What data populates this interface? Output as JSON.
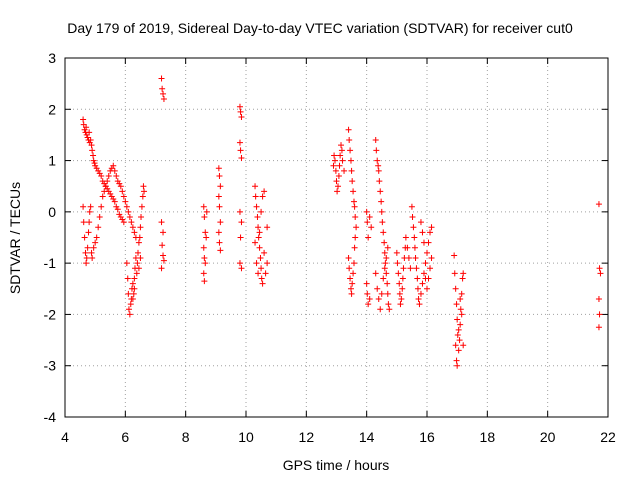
{
  "chart_data": {
    "type": "scatter",
    "title": "Day 179 of 2019, Sidereal Day-to-day VTEC variation (SDTVAR) for receiver cut0",
    "xlabel": "GPS time / hours",
    "ylabel": "SDTVAR / TECUs",
    "xlim": [
      4,
      22
    ],
    "ylim": [
      -4,
      3
    ],
    "xticks": [
      "4",
      "6",
      "8",
      "10",
      "12",
      "14",
      "16",
      "18",
      "20",
      "22"
    ],
    "yticks": [
      "3",
      "2",
      "1",
      "0",
      "-1",
      "-2",
      "-3",
      "-4"
    ],
    "grid": true,
    "marker": "+",
    "color": "#ff0000",
    "points": [
      [
        4.6,
        1.8
      ],
      [
        4.62,
        1.7
      ],
      [
        4.65,
        1.6
      ],
      [
        4.68,
        1.55
      ],
      [
        4.7,
        1.65
      ],
      [
        4.72,
        1.5
      ],
      [
        4.75,
        1.45
      ],
      [
        4.78,
        1.4
      ],
      [
        4.8,
        1.55
      ],
      [
        4.82,
        1.35
      ],
      [
        4.85,
        1.4
      ],
      [
        4.88,
        1.3
      ],
      [
        4.9,
        1.2
      ],
      [
        4.93,
        1.1
      ],
      [
        4.95,
        1.0
      ],
      [
        4.98,
        0.95
      ],
      [
        5.0,
        0.9
      ],
      [
        5.05,
        0.85
      ],
      [
        5.1,
        0.8
      ],
      [
        5.15,
        0.75
      ],
      [
        5.2,
        0.7
      ],
      [
        5.25,
        0.6
      ],
      [
        5.3,
        0.55
      ],
      [
        5.35,
        0.5
      ],
      [
        5.4,
        0.45
      ],
      [
        5.45,
        0.4
      ],
      [
        5.5,
        0.35
      ],
      [
        5.55,
        0.3
      ],
      [
        5.6,
        0.25
      ],
      [
        5.65,
        0.2
      ],
      [
        5.7,
        0.1
      ],
      [
        5.75,
        0.05
      ],
      [
        5.8,
        -0.05
      ],
      [
        5.85,
        -0.1
      ],
      [
        5.9,
        -0.15
      ],
      [
        5.95,
        -0.2
      ],
      [
        4.6,
        0.1
      ],
      [
        4.62,
        -0.2
      ],
      [
        4.65,
        -0.5
      ],
      [
        4.68,
        -0.8
      ],
      [
        4.7,
        -1.0
      ],
      [
        4.72,
        -0.9
      ],
      [
        4.75,
        -0.7
      ],
      [
        4.78,
        -0.4
      ],
      [
        4.8,
        -0.2
      ],
      [
        4.82,
        0.0
      ],
      [
        4.85,
        0.1
      ],
      [
        4.88,
        -0.8
      ],
      [
        4.9,
        -0.9
      ],
      [
        4.95,
        -0.7
      ],
      [
        5.0,
        -0.6
      ],
      [
        5.05,
        -0.5
      ],
      [
        5.1,
        -0.3
      ],
      [
        5.15,
        -0.1
      ],
      [
        5.2,
        0.1
      ],
      [
        5.25,
        0.3
      ],
      [
        5.3,
        0.4
      ],
      [
        5.35,
        0.5
      ],
      [
        5.4,
        0.6
      ],
      [
        5.45,
        0.7
      ],
      [
        5.5,
        0.8
      ],
      [
        5.55,
        0.85
      ],
      [
        5.6,
        0.9
      ],
      [
        5.65,
        0.8
      ],
      [
        5.7,
        0.7
      ],
      [
        5.75,
        0.6
      ],
      [
        5.8,
        0.55
      ],
      [
        5.85,
        0.5
      ],
      [
        5.9,
        0.4
      ],
      [
        5.95,
        0.3
      ],
      [
        6.0,
        0.2
      ],
      [
        6.05,
        0.1
      ],
      [
        6.1,
        0.0
      ],
      [
        6.15,
        -0.1
      ],
      [
        6.2,
        -0.2
      ],
      [
        6.25,
        -0.3
      ],
      [
        6.3,
        -0.4
      ],
      [
        6.35,
        -0.5
      ],
      [
        6.05,
        -1.0
      ],
      [
        6.08,
        -1.3
      ],
      [
        6.1,
        -1.6
      ],
      [
        6.12,
        -1.9
      ],
      [
        6.15,
        -2.0
      ],
      [
        6.18,
        -1.8
      ],
      [
        6.2,
        -1.7
      ],
      [
        6.22,
        -1.5
      ],
      [
        6.25,
        -1.4
      ],
      [
        6.28,
        -1.6
      ],
      [
        6.3,
        -1.3
      ],
      [
        6.32,
        -1.1
      ],
      [
        6.35,
        -0.9
      ],
      [
        6.38,
        -1.2
      ],
      [
        6.4,
        -1.0
      ],
      [
        6.42,
        -0.8
      ],
      [
        6.45,
        -0.6
      ],
      [
        6.48,
        -0.5
      ],
      [
        6.5,
        -0.3
      ],
      [
        6.52,
        -0.1
      ],
      [
        6.55,
        0.1
      ],
      [
        6.58,
        0.3
      ],
      [
        6.6,
        0.5
      ],
      [
        6.62,
        0.4
      ],
      [
        6.5,
        -0.9
      ],
      [
        6.45,
        -1.1
      ],
      [
        6.3,
        -1.5
      ],
      [
        6.25,
        -1.7
      ],
      [
        7.2,
        2.6
      ],
      [
        7.22,
        2.4
      ],
      [
        7.25,
        2.3
      ],
      [
        7.28,
        2.2
      ],
      [
        7.2,
        -0.2
      ],
      [
        7.25,
        -0.4
      ],
      [
        7.22,
        -0.65
      ],
      [
        7.25,
        -0.85
      ],
      [
        7.28,
        -0.95
      ],
      [
        7.2,
        -1.1
      ],
      [
        8.6,
        0.1
      ],
      [
        8.62,
        -0.1
      ],
      [
        8.65,
        -0.4
      ],
      [
        8.6,
        -0.7
      ],
      [
        8.62,
        -0.9
      ],
      [
        8.65,
        -1.0
      ],
      [
        8.6,
        -1.2
      ],
      [
        8.62,
        -1.35
      ],
      [
        8.7,
        0.0
      ],
      [
        8.68,
        -0.5
      ],
      [
        9.1,
        0.85
      ],
      [
        9.12,
        0.7
      ],
      [
        9.15,
        0.5
      ],
      [
        9.1,
        0.3
      ],
      [
        9.12,
        0.1
      ],
      [
        9.15,
        -0.2
      ],
      [
        9.1,
        -0.4
      ],
      [
        9.12,
        -0.6
      ],
      [
        9.15,
        -0.75
      ],
      [
        9.8,
        2.05
      ],
      [
        9.82,
        1.95
      ],
      [
        9.85,
        1.85
      ],
      [
        9.8,
        1.35
      ],
      [
        9.82,
        1.2
      ],
      [
        9.85,
        1.05
      ],
      [
        9.8,
        0.0
      ],
      [
        9.85,
        -0.2
      ],
      [
        9.82,
        -0.5
      ],
      [
        9.8,
        -1.0
      ],
      [
        9.85,
        -1.1
      ],
      [
        10.3,
        0.5
      ],
      [
        10.32,
        0.3
      ],
      [
        10.35,
        0.1
      ],
      [
        10.38,
        -0.1
      ],
      [
        10.4,
        -0.3
      ],
      [
        10.42,
        -0.5
      ],
      [
        10.45,
        -0.7
      ],
      [
        10.48,
        -0.9
      ],
      [
        10.5,
        -1.1
      ],
      [
        10.52,
        -1.3
      ],
      [
        10.55,
        -1.4
      ],
      [
        10.3,
        -0.6
      ],
      [
        10.35,
        -1.0
      ],
      [
        10.4,
        -1.2
      ],
      [
        10.45,
        -0.4
      ],
      [
        10.5,
        0.0
      ],
      [
        10.55,
        0.3
      ],
      [
        10.6,
        0.4
      ],
      [
        10.6,
        -0.8
      ],
      [
        10.65,
        -1.2
      ],
      [
        10.7,
        -0.3
      ],
      [
        10.7,
        -1.0
      ],
      [
        12.9,
        0.9
      ],
      [
        12.92,
        1.1
      ],
      [
        12.95,
        1.0
      ],
      [
        12.98,
        0.8
      ],
      [
        13.0,
        0.6
      ],
      [
        13.02,
        0.4
      ],
      [
        13.05,
        0.5
      ],
      [
        13.08,
        0.7
      ],
      [
        13.1,
        0.9
      ],
      [
        13.12,
        1.1
      ],
      [
        13.15,
        1.3
      ],
      [
        13.18,
        1.2
      ],
      [
        13.2,
        1.0
      ],
      [
        13.25,
        0.8
      ],
      [
        13.4,
        1.6
      ],
      [
        13.42,
        1.4
      ],
      [
        13.45,
        1.2
      ],
      [
        13.48,
        1.0
      ],
      [
        13.5,
        0.8
      ],
      [
        13.52,
        0.6
      ],
      [
        13.55,
        0.4
      ],
      [
        13.58,
        0.2
      ],
      [
        13.6,
        0.1
      ],
      [
        13.62,
        -0.1
      ],
      [
        13.65,
        -0.3
      ],
      [
        13.4,
        -0.9
      ],
      [
        13.42,
        -1.1
      ],
      [
        13.45,
        -1.3
      ],
      [
        13.48,
        -1.5
      ],
      [
        13.5,
        -1.6
      ],
      [
        13.52,
        -1.4
      ],
      [
        13.55,
        -1.2
      ],
      [
        13.58,
        -1.0
      ],
      [
        13.6,
        -0.7
      ],
      [
        13.62,
        -0.5
      ],
      [
        14.0,
        0.0
      ],
      [
        14.02,
        -0.2
      ],
      [
        14.05,
        -0.5
      ],
      [
        14.1,
        -0.1
      ],
      [
        14.15,
        -0.3
      ],
      [
        14.0,
        -1.4
      ],
      [
        14.02,
        -1.6
      ],
      [
        14.05,
        -1.8
      ],
      [
        14.1,
        -1.7
      ],
      [
        14.3,
        1.4
      ],
      [
        14.32,
        1.2
      ],
      [
        14.35,
        1.0
      ],
      [
        14.38,
        0.9
      ],
      [
        14.4,
        0.8
      ],
      [
        14.42,
        0.6
      ],
      [
        14.45,
        0.4
      ],
      [
        14.48,
        0.2
      ],
      [
        14.5,
        0.0
      ],
      [
        14.52,
        -0.2
      ],
      [
        14.55,
        -0.4
      ],
      [
        14.58,
        -0.6
      ],
      [
        14.6,
        -0.8
      ],
      [
        14.62,
        -1.0
      ],
      [
        14.65,
        -1.2
      ],
      [
        14.68,
        -1.4
      ],
      [
        14.7,
        -1.6
      ],
      [
        14.72,
        -1.8
      ],
      [
        14.75,
        -1.9
      ],
      [
        14.3,
        -1.2
      ],
      [
        14.35,
        -1.5
      ],
      [
        14.4,
        -1.7
      ],
      [
        14.45,
        -1.9
      ],
      [
        14.5,
        -1.6
      ],
      [
        14.55,
        -1.3
      ],
      [
        14.6,
        -1.1
      ],
      [
        14.65,
        -0.9
      ],
      [
        14.7,
        -0.7
      ],
      [
        15.0,
        -0.8
      ],
      [
        15.02,
        -1.0
      ],
      [
        15.05,
        -1.2
      ],
      [
        15.08,
        -1.4
      ],
      [
        15.1,
        -1.6
      ],
      [
        15.12,
        -1.8
      ],
      [
        15.15,
        -1.7
      ],
      [
        15.18,
        -1.5
      ],
      [
        15.2,
        -1.3
      ],
      [
        15.22,
        -1.1
      ],
      [
        15.25,
        -0.9
      ],
      [
        15.28,
        -0.7
      ],
      [
        15.3,
        -0.5
      ],
      [
        15.35,
        -0.7
      ],
      [
        15.4,
        -0.9
      ],
      [
        15.45,
        -1.1
      ],
      [
        15.5,
        0.1
      ],
      [
        15.52,
        -0.1
      ],
      [
        15.55,
        -0.3
      ],
      [
        15.58,
        -0.5
      ],
      [
        15.6,
        -0.7
      ],
      [
        15.62,
        -0.9
      ],
      [
        15.65,
        -1.1
      ],
      [
        15.68,
        -1.3
      ],
      [
        15.7,
        -1.5
      ],
      [
        15.72,
        -1.7
      ],
      [
        15.75,
        -1.8
      ],
      [
        15.8,
        -1.6
      ],
      [
        15.85,
        -1.4
      ],
      [
        15.9,
        -1.2
      ],
      [
        15.95,
        -1.0
      ],
      [
        16.0,
        -0.8
      ],
      [
        16.05,
        -0.6
      ],
      [
        16.1,
        -0.4
      ],
      [
        16.15,
        -0.3
      ],
      [
        15.8,
        -0.2
      ],
      [
        15.85,
        -0.4
      ],
      [
        15.9,
        -0.6
      ],
      [
        15.95,
        -1.3
      ],
      [
        16.0,
        -1.5
      ],
      [
        16.05,
        -1.3
      ],
      [
        16.1,
        -1.1
      ],
      [
        16.15,
        -0.9
      ],
      [
        16.9,
        -0.85
      ],
      [
        16.92,
        -1.2
      ],
      [
        16.95,
        -1.5
      ],
      [
        16.98,
        -1.8
      ],
      [
        17.0,
        -2.1
      ],
      [
        17.02,
        -2.4
      ],
      [
        17.05,
        -2.7
      ],
      [
        17.08,
        -2.5
      ],
      [
        17.1,
        -2.2
      ],
      [
        17.12,
        -1.9
      ],
      [
        17.15,
        -1.6
      ],
      [
        17.18,
        -1.3
      ],
      [
        17.2,
        -1.2
      ],
      [
        16.95,
        -2.6
      ],
      [
        16.98,
        -2.9
      ],
      [
        17.0,
        -3.0
      ],
      [
        17.05,
        -2.3
      ],
      [
        17.1,
        -1.7
      ],
      [
        17.15,
        -2.0
      ],
      [
        17.2,
        -2.6
      ],
      [
        21.7,
        0.15
      ],
      [
        21.72,
        -1.1
      ],
      [
        21.75,
        -1.2
      ],
      [
        21.7,
        -1.7
      ],
      [
        21.72,
        -2.0
      ],
      [
        21.7,
        -2.25
      ]
    ]
  }
}
